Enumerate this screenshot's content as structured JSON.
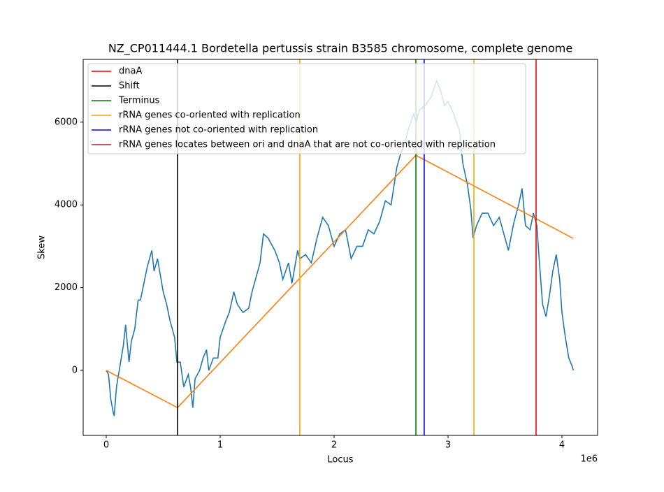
{
  "chart_data": {
    "type": "line",
    "title": "NZ_CP011444.1 Bordetella pertussis strain B3585 chromosome, complete genome",
    "xlabel": "Locus",
    "ylabel": "Skew",
    "x_offset_label": "1e6",
    "xlim": [
      -202500,
      4313000
    ],
    "ylim": [
      -1571,
      7517
    ],
    "xticks": [
      {
        "value": 0,
        "label": "0"
      },
      {
        "value": 1000000,
        "label": "1"
      },
      {
        "value": 2000000,
        "label": "2"
      },
      {
        "value": 3000000,
        "label": "3"
      },
      {
        "value": 4000000,
        "label": "4"
      }
    ],
    "yticks": [
      0,
      2000,
      4000,
      6000
    ],
    "grid": false,
    "legend": "upper left",
    "lines": [
      {
        "color": "#1f77b4",
        "x": [
          0,
          20000,
          40000,
          60000,
          70000,
          90000,
          120000,
          150000,
          170000,
          200000,
          220000,
          250000,
          280000,
          300000,
          330000,
          360000,
          400000,
          420000,
          450000,
          500000,
          530000,
          560000,
          600000,
          620000,
          650000,
          680000,
          720000,
          740000,
          760000,
          780000,
          820000,
          850000,
          880000,
          900000,
          940000,
          980000,
          1000000,
          1050000,
          1080000,
          1120000,
          1150000,
          1200000,
          1250000,
          1280000,
          1350000,
          1380000,
          1420000,
          1480000,
          1520000,
          1550000,
          1600000,
          1630000,
          1680000,
          1700000,
          1750000,
          1800000,
          1850000,
          1900000,
          1950000,
          2000000,
          2050000,
          2100000,
          2150000,
          2200000,
          2250000,
          2300000,
          2350000,
          2400000,
          2450000,
          2500000,
          2550000,
          2580000,
          2620000,
          2660000,
          2700000,
          2720000,
          2750000,
          2800000,
          2850000,
          2900000,
          2930000,
          2970000,
          3000000,
          3050000,
          3100000,
          3130000,
          3170000,
          3200000,
          3220000,
          3250000,
          3300000,
          3350000,
          3400000,
          3450000,
          3500000,
          3530000,
          3580000,
          3620000,
          3650000,
          3680000,
          3720000,
          3750000,
          3780000,
          3800000,
          3830000,
          3860000,
          3890000,
          3920000,
          3950000,
          3980000,
          4000000,
          4030000,
          4060000,
          4090000,
          4100000
        ],
        "values": [
          0,
          -100,
          -700,
          -1000,
          -1100,
          -400,
          100,
          600,
          1100,
          200,
          700,
          1000,
          1700,
          1700,
          2100,
          2500,
          2900,
          2400,
          2700,
          1900,
          1600,
          1200,
          800,
          200,
          200,
          -400,
          -100,
          -400,
          -900,
          -200,
          0,
          300,
          500,
          0,
          300,
          300,
          800,
          1200,
          1400,
          1900,
          1600,
          1400,
          1500,
          1900,
          2600,
          3300,
          3200,
          2900,
          2600,
          2200,
          2600,
          2100,
          2900,
          2700,
          2800,
          2600,
          3200,
          3700,
          3500,
          3000,
          3300,
          3400,
          2700,
          3000,
          3000,
          3400,
          3300,
          3600,
          4100,
          4000,
          4900,
          5200,
          5500,
          5900,
          6200,
          6000,
          6300,
          6400,
          6600,
          7000,
          6800,
          6400,
          6500,
          6200,
          5800,
          5000,
          4500,
          3900,
          3200,
          3500,
          3800,
          3800,
          3500,
          3700,
          3200,
          2900,
          3600,
          4000,
          4400,
          3500,
          3400,
          3800,
          3500,
          2700,
          1600,
          1300,
          1800,
          2400,
          2800,
          2200,
          1400,
          800,
          300,
          100,
          0
        ]
      },
      {
        "color": "#ff7f0e",
        "x": [
          0,
          626000,
          2718000,
          4100000
        ],
        "values": [
          0,
          -900,
          5200,
          3190
        ]
      }
    ],
    "markers": [
      {
        "name": "dnaA",
        "color": "#ff0000",
        "x": [
          3773000
        ]
      },
      {
        "name": "Shift",
        "color": "#000000",
        "x": [
          626000
        ]
      },
      {
        "name": "Terminus",
        "color": "#008000",
        "x": [
          2718000
        ]
      },
      {
        "name": "rRNA genes co-oriented with replication",
        "color": "#ffa500",
        "x": [
          1699000,
          3227000
        ]
      },
      {
        "name": "rRNA genes not co-oriented with replication",
        "color": "#0000ff",
        "x": [
          2791000
        ]
      },
      {
        "name": "rRNA genes locates between ori and dnaA that are not co-oriented with replication",
        "color": "#a52a2a",
        "x": []
      }
    ]
  }
}
